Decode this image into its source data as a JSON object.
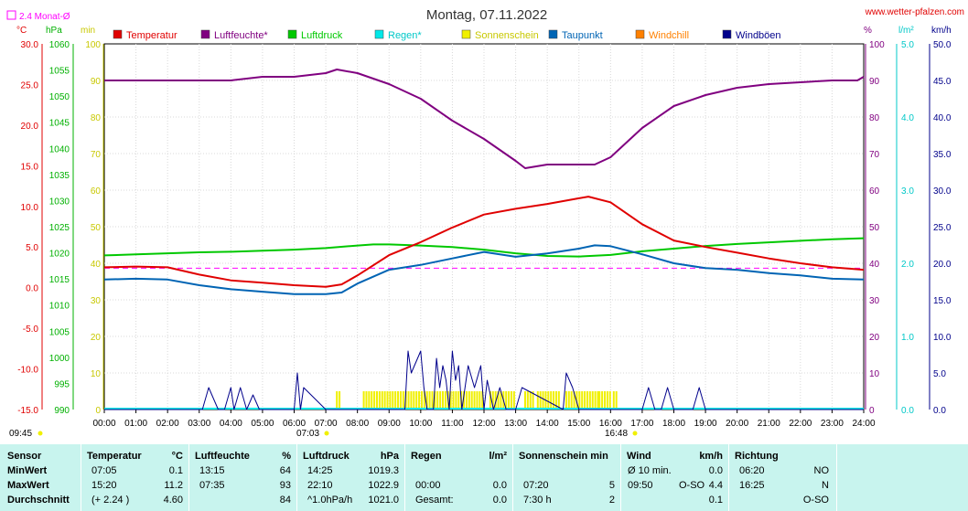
{
  "header": {
    "title": "Montag, 07.11.2022",
    "site": "www.wetter-pfalzen.com",
    "avg_label": "2.4 Monat-Ø"
  },
  "units": {
    "temp": "°C",
    "pressure": "hPa",
    "sun": "min",
    "humidity": "%",
    "rain": "l/m²",
    "wind": "km/h"
  },
  "colors": {
    "temperature": "#e00000",
    "humidity": "#800080",
    "pressure": "#00c800",
    "rain": "#00e8e8",
    "sunshine": "#f0f000",
    "dewpoint": "#0064b4",
    "windchill": "#ff8000",
    "gust": "#00008b",
    "avg_line": "#ff00ff"
  },
  "chart_data": {
    "type": "line",
    "legend": [
      {
        "name": "Temperatur",
        "color": "#e00000"
      },
      {
        "name": "Luftfeuchte*",
        "color": "#800080"
      },
      {
        "name": "Luftdruck",
        "color": "#00c800"
      },
      {
        "name": "Regen*",
        "color": "#00e8e8"
      },
      {
        "name": "Sonnenschein",
        "color": "#f0f000"
      },
      {
        "name": "Taupunkt",
        "color": "#0064b4"
      },
      {
        "name": "Windchill",
        "color": "#ff8000"
      },
      {
        "name": "Windböen",
        "color": "#00008b"
      }
    ],
    "x_ticks": [
      "00:00",
      "01:00",
      "02:00",
      "03:00",
      "04:00",
      "05:00",
      "06:00",
      "07:00",
      "08:00",
      "09:00",
      "10:00",
      "11:00",
      "12:00",
      "13:00",
      "14:00",
      "15:00",
      "16:00",
      "17:00",
      "18:00",
      "19:00",
      "20:00",
      "21:00",
      "22:00",
      "23:00",
      "24:00"
    ],
    "axes": {
      "temp_ticks": [
        "30.0",
        "25.0",
        "20.0",
        "15.0",
        "10.0",
        "5.0",
        "0.0",
        "-5.0",
        "-10.0",
        "-15.0"
      ],
      "pressure_ticks": [
        "1060",
        "1055",
        "1050",
        "1045",
        "1040",
        "1035",
        "1030",
        "1025",
        "1020",
        "1015",
        "1010",
        "1005",
        "1000",
        "995",
        "990"
      ],
      "sun_ticks": [
        "100",
        "90",
        "80",
        "70",
        "60",
        "50",
        "40",
        "30",
        "20",
        "10",
        "0"
      ],
      "humidity_ticks": [
        "100",
        "90",
        "80",
        "70",
        "60",
        "50",
        "40",
        "30",
        "20",
        "10",
        "0"
      ],
      "rain_ticks": [
        "5.0",
        "4.0",
        "3.0",
        "2.0",
        "1.0",
        "0.0"
      ],
      "wind_ticks": [
        "50.0",
        "45.0",
        "40.0",
        "35.0",
        "30.0",
        "25.0",
        "20.0",
        "15.0",
        "10.0",
        "5.0",
        "0.0"
      ],
      "temp_range": [
        -15,
        30
      ],
      "humidity_range": [
        0,
        100
      ],
      "pressure_range": [
        990,
        1060
      ],
      "wind_range": [
        0,
        50
      ]
    },
    "monthly_avg_temp": 2.4,
    "sunrise": "07:03",
    "sunset": "16:48",
    "time_label": "09:45",
    "series": [
      {
        "key": "temperature",
        "x": [
          0,
          1,
          2,
          3,
          4,
          5,
          6,
          7,
          7.5,
          8,
          9,
          10,
          11,
          12,
          13,
          14,
          15,
          15.3,
          16,
          17,
          18,
          19,
          20,
          21,
          22,
          23,
          24
        ],
        "y": [
          2.5,
          2.6,
          2.5,
          1.6,
          0.9,
          0.6,
          0.3,
          0.1,
          0.4,
          1.5,
          4.0,
          5.6,
          7.4,
          9.0,
          9.7,
          10.3,
          11.0,
          11.2,
          10.5,
          7.8,
          5.8,
          5.0,
          4.3,
          3.6,
          3.0,
          2.5,
          2.2
        ]
      },
      {
        "key": "dewpoint",
        "x": [
          0,
          1,
          2,
          3,
          4,
          5,
          6,
          7,
          7.5,
          8,
          9,
          10,
          11,
          12,
          13,
          14,
          15,
          15.5,
          16,
          17,
          18,
          19,
          20,
          21,
          22,
          23,
          24
        ],
        "y": [
          1.0,
          1.1,
          1.0,
          0.3,
          -0.2,
          -0.5,
          -0.8,
          -0.8,
          -0.6,
          0.5,
          2.2,
          2.8,
          3.6,
          4.4,
          3.8,
          4.2,
          4.8,
          5.2,
          5.1,
          4.1,
          3.0,
          2.4,
          2.2,
          1.8,
          1.5,
          1.1,
          1.0
        ]
      },
      {
        "key": "humidity",
        "x": [
          0,
          1,
          2,
          3,
          4,
          5,
          6,
          7,
          7.35,
          8,
          9,
          10,
          11,
          12,
          13,
          13.3,
          14,
          15,
          15.5,
          16,
          17,
          18,
          19,
          20,
          21,
          22,
          23,
          23.8,
          24
        ],
        "y": [
          90,
          90,
          90,
          90,
          90,
          91,
          91,
          92,
          93,
          92,
          89,
          85,
          79,
          74,
          68,
          66,
          67,
          67,
          67,
          69,
          77,
          83,
          86,
          88,
          89,
          89.5,
          90,
          90,
          91
        ]
      },
      {
        "key": "pressure",
        "x": [
          0,
          1,
          2,
          3,
          4,
          5,
          6,
          7,
          8,
          8.5,
          9,
          10,
          11,
          12,
          13,
          14,
          15,
          16,
          17,
          18,
          19,
          20,
          21,
          22,
          23,
          24
        ],
        "y": [
          1019.5,
          1019.7,
          1019.9,
          1020.1,
          1020.2,
          1020.4,
          1020.6,
          1020.9,
          1021.4,
          1021.6,
          1021.6,
          1021.4,
          1021.1,
          1020.6,
          1019.9,
          1019.4,
          1019.3,
          1019.6,
          1020.3,
          1020.8,
          1021.3,
          1021.7,
          1022.0,
          1022.3,
          1022.6,
          1022.8
        ]
      },
      {
        "key": "gust",
        "x": [
          0,
          3.1,
          3.3,
          3.6,
          3.8,
          4.0,
          4.1,
          4.3,
          4.5,
          4.7,
          4.9,
          6.0,
          6.1,
          6.2,
          6.3,
          7.0,
          7.2,
          9.5,
          9.6,
          9.7,
          9.9,
          10.0,
          10.1,
          10.2,
          10.4,
          10.5,
          10.6,
          10.7,
          10.8,
          10.9,
          11.0,
          11.1,
          11.2,
          11.3,
          11.5,
          11.7,
          11.9,
          12.0,
          12.1,
          12.3,
          12.5,
          12.7,
          12.9,
          13.0,
          13.2,
          14.5,
          14.6,
          14.8,
          15.0,
          15.2,
          17.0,
          17.2,
          17.4,
          17.6,
          17.8,
          18.0,
          18.2,
          18.6,
          18.8,
          19.0,
          24
        ],
        "y": [
          0,
          0,
          3,
          0,
          0,
          3,
          0,
          3,
          0,
          2,
          0,
          0,
          5,
          0,
          3,
          0,
          0,
          0,
          8,
          5,
          7,
          8,
          3,
          0,
          0,
          7,
          3,
          6,
          4,
          0,
          8,
          4,
          6,
          0,
          6,
          3,
          6,
          0,
          4,
          0,
          3,
          0,
          0,
          0,
          3,
          0,
          5,
          3,
          0,
          0,
          0,
          3,
          0,
          0,
          3,
          0,
          0,
          0,
          3,
          0,
          0
        ]
      }
    ],
    "sunshine_bars": [
      [
        7.35,
        7.45
      ],
      [
        8.2,
        12.0
      ],
      [
        12.2,
        13.0
      ],
      [
        13.3,
        13.6
      ],
      [
        13.7,
        14.4
      ],
      [
        14.6,
        15.6
      ],
      [
        15.65,
        16.0
      ],
      [
        16.1,
        16.2
      ]
    ]
  },
  "stats": {
    "headers": {
      "sensor": "Sensor",
      "temperature": "Temperatur",
      "temp_unit": "°C",
      "humidity": "Luftfeuchte",
      "hum_unit": "%",
      "pressure": "Luftdruck",
      "press_unit": "hPa",
      "rain": "Regen",
      "rain_unit": "l/m²",
      "sun": "Sonnenschein min",
      "wind": "Wind",
      "wind_unit": "km/h",
      "direction": "Richtung"
    },
    "rows": [
      {
        "label": "MinWert",
        "temp_time": "07:05",
        "temp_val": "0.1",
        "hum_time": "13:15",
        "hum_val": "64",
        "press_time": "14:25",
        "press_val": "1019.3",
        "rain_time": "",
        "rain_val": "",
        "sun_time": "",
        "sun_val": "",
        "wind_time": "Ø 10 min.",
        "wind_dir": "",
        "wind_val": "0.0",
        "dir_time": "06:20",
        "dir_val": "NO"
      },
      {
        "label": "MaxWert",
        "temp_time": "15:20",
        "temp_val": "11.2",
        "hum_time": "07:35",
        "hum_val": "93",
        "press_time": "22:10",
        "press_val": "1022.9",
        "rain_time": "00:00",
        "rain_val": "0.0",
        "sun_time": "07:20",
        "sun_val": "5",
        "wind_time": "09:50",
        "wind_dir": "O-SO",
        "wind_val": "4.4",
        "dir_time": "16:25",
        "dir_val": "N"
      },
      {
        "label": "Durchschnitt",
        "temp_time": "(+ 2.24 )",
        "temp_val": "4.60",
        "hum_time": "",
        "hum_val": "84",
        "press_time": "^1.0hPa/h",
        "press_val": "1021.0",
        "rain_time": "Gesamt:",
        "rain_val": "0.0",
        "sun_time": "7:30 h",
        "sun_val": "2",
        "wind_time": "",
        "wind_dir": "",
        "wind_val": "0.1",
        "dir_time": "",
        "dir_val": "O-SO"
      }
    ]
  }
}
